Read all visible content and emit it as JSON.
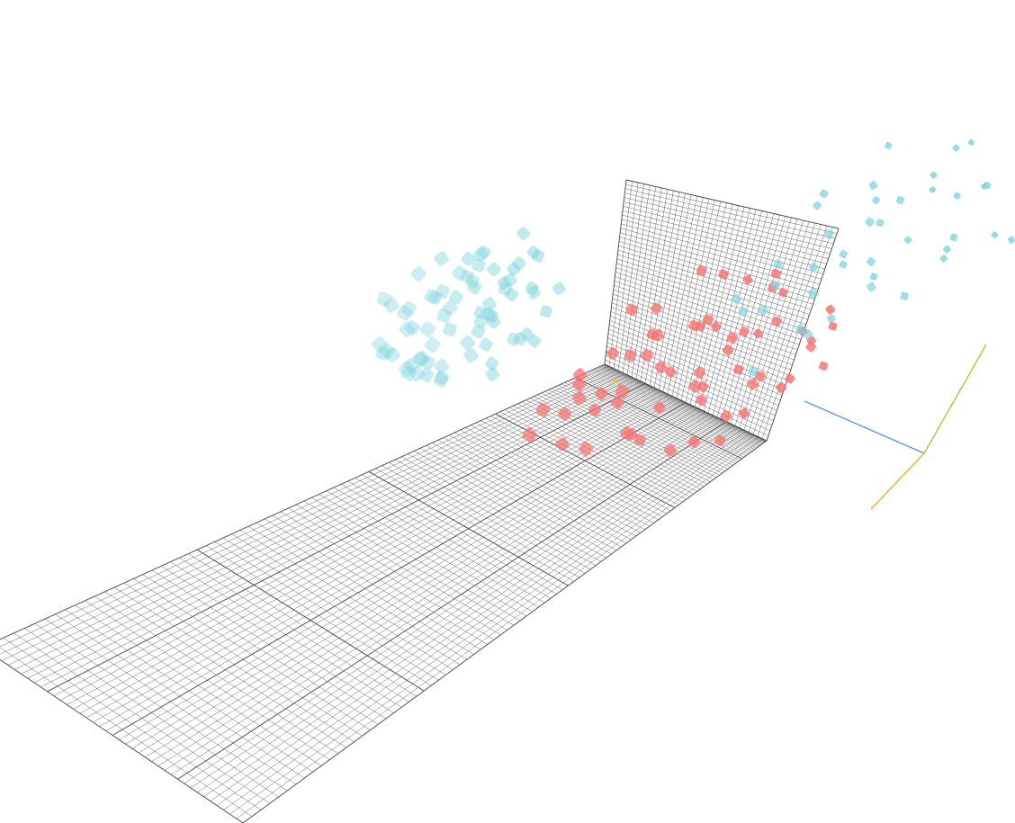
{
  "chart_data": {
    "type": "scatter",
    "dimensions": 3,
    "title": "",
    "xlabel": "",
    "ylabel": "",
    "zlabel": "",
    "grid": true,
    "xlim": [
      -5,
      5
    ],
    "ylim": [
      -5,
      5
    ],
    "zlim": [
      -5,
      5
    ],
    "series": [
      {
        "color": "#f87171",
        "points": [
          [
            2.1,
            -0.8,
            0.4
          ],
          [
            1.4,
            -1.2,
            0.9
          ],
          [
            2.8,
            0.3,
            1.2
          ],
          [
            0.6,
            -0.4,
            0.1
          ],
          [
            1.9,
            0.9,
            -0.3
          ],
          [
            3.2,
            -0.6,
            0.7
          ],
          [
            0.9,
            0.2,
            1.5
          ],
          [
            2.4,
            -1.6,
            -0.2
          ],
          [
            1.1,
            1.1,
            0.6
          ],
          [
            2.9,
            0.7,
            -0.5
          ],
          [
            0.3,
            -1.0,
            0.8
          ],
          [
            1.7,
            -0.1,
            1.8
          ],
          [
            3.5,
            0.1,
            0.2
          ],
          [
            2.2,
            1.4,
            0.9
          ],
          [
            0.8,
            -1.8,
            0.3
          ],
          [
            1.5,
            0.5,
            -0.8
          ],
          [
            2.6,
            -1.1,
            1.6
          ],
          [
            3.0,
            1.6,
            0.5
          ],
          [
            0.4,
            0.6,
            1.1
          ],
          [
            1.9,
            -2.0,
            0.6
          ],
          [
            2.3,
            0.0,
            2.2
          ],
          [
            1.2,
            -0.7,
            -0.6
          ],
          [
            3.3,
            -1.4,
            1.0
          ],
          [
            0.7,
            1.5,
            0.2
          ],
          [
            2.0,
            2.0,
            1.3
          ],
          [
            1.6,
            -1.5,
            1.9
          ],
          [
            2.7,
            -0.3,
            -0.9
          ],
          [
            0.2,
            -0.2,
            1.7
          ],
          [
            3.6,
            0.8,
            1.4
          ],
          [
            1.3,
            1.8,
            -0.2
          ],
          [
            2.5,
            -2.2,
            0.8
          ],
          [
            1.0,
            -0.9,
            2.4
          ],
          [
            3.1,
            0.4,
            -0.4
          ],
          [
            0.5,
            1.2,
            0.7
          ],
          [
            1.8,
            0.6,
            2.0
          ],
          [
            2.9,
            -1.9,
            0.1
          ],
          [
            1.4,
            2.3,
            1.0
          ],
          [
            0.1,
            -1.4,
            0.5
          ],
          [
            2.2,
            -0.5,
            1.1
          ],
          [
            3.4,
            -0.9,
            0.3
          ],
          [
            1.7,
            1.0,
            1.7
          ],
          [
            0.9,
            -2.1,
            1.2
          ],
          [
            2.6,
            1.2,
            2.1
          ],
          [
            1.1,
            0.0,
            -0.4
          ],
          [
            3.7,
            -0.2,
            0.9
          ],
          [
            2.0,
            -1.3,
            2.5
          ],
          [
            0.6,
            0.9,
            -0.1
          ],
          [
            2.8,
            2.2,
            0.4
          ],
          [
            1.5,
            -2.4,
            0.0
          ],
          [
            2.4,
            0.8,
            1.5
          ],
          [
            0.3,
            0.3,
            2.0
          ],
          [
            3.2,
            1.9,
            1.8
          ],
          [
            1.9,
            -0.3,
            0.2
          ],
          [
            1.2,
            1.6,
            1.4
          ],
          [
            2.7,
            -2.0,
            1.4
          ],
          [
            0.8,
            -0.6,
            2.6
          ],
          [
            3.0,
            -0.1,
            1.9
          ],
          [
            1.6,
            2.6,
            0.6
          ],
          [
            2.3,
            -0.9,
            -0.7
          ],
          [
            0.4,
            -1.7,
            1.6
          ]
        ]
      },
      {
        "color": "#7dd3dc",
        "points": [
          [
            -0.9,
            1.2,
            2.1
          ],
          [
            -1.3,
            2.0,
            1.6
          ],
          [
            -0.5,
            2.6,
            2.8
          ],
          [
            -1.8,
            1.4,
            3.0
          ],
          [
            -0.7,
            3.1,
            1.9
          ],
          [
            -1.5,
            2.4,
            3.5
          ],
          [
            -0.4,
            1.8,
            3.2
          ],
          [
            -2.0,
            3.0,
            2.4
          ],
          [
            -1.1,
            3.6,
            3.0
          ],
          [
            -0.6,
            2.2,
            1.2
          ],
          [
            -1.7,
            2.8,
            1.5
          ],
          [
            -0.8,
            3.4,
            3.8
          ],
          [
            -1.4,
            1.6,
            2.6
          ],
          [
            -0.3,
            2.9,
            2.5
          ],
          [
            -1.9,
            3.5,
            3.3
          ],
          [
            -1.0,
            2.5,
            4.0
          ],
          [
            -0.5,
            3.8,
            2.2
          ],
          [
            -1.6,
            2.1,
            3.9
          ],
          [
            -0.9,
            1.5,
            1.7
          ],
          [
            -1.2,
            3.2,
            2.0
          ],
          [
            -0.2,
            2.4,
            3.6
          ],
          [
            -2.1,
            2.6,
            2.9
          ],
          [
            -0.7,
            3.0,
            4.2
          ],
          [
            -1.4,
            3.9,
            2.7
          ],
          [
            -0.4,
            1.3,
            2.9
          ],
          [
            -1.8,
            1.9,
            2.2
          ],
          [
            -1.0,
            2.9,
            1.4
          ],
          [
            -0.6,
            3.5,
            3.1
          ],
          [
            -1.5,
            3.3,
            4.1
          ],
          [
            -0.8,
            2.0,
            3.4
          ],
          [
            -1.3,
            2.7,
            2.4
          ],
          [
            -0.3,
            3.3,
            1.8
          ],
          [
            -1.9,
            2.2,
            3.7
          ],
          [
            -1.1,
            1.7,
            4.3
          ],
          [
            -0.5,
            2.7,
            2.0
          ],
          [
            -1.6,
            3.7,
            2.3
          ],
          [
            -0.9,
            3.8,
            3.6
          ],
          [
            -1.2,
            1.9,
            1.1
          ],
          [
            -0.4,
            2.1,
            4.0
          ],
          [
            -2.0,
            3.3,
            1.9
          ],
          [
            -0.7,
            1.6,
            3.8
          ],
          [
            -1.4,
            2.3,
            3.2
          ],
          [
            -0.2,
            3.6,
            2.9
          ],
          [
            -1.7,
            3.1,
            1.6
          ],
          [
            -1.0,
            2.2,
            2.6
          ],
          [
            -0.6,
            2.8,
            3.9
          ],
          [
            -1.3,
            3.5,
            3.4
          ],
          [
            -0.8,
            1.4,
            1.5
          ],
          [
            -1.5,
            1.8,
            2.0
          ],
          [
            -0.3,
            2.6,
            3.3
          ],
          [
            -1.2,
            2.9,
            2.9
          ],
          [
            -0.9,
            2.4,
            2.3
          ],
          [
            -1.6,
            2.5,
            3.0
          ],
          [
            -0.5,
            3.2,
            3.5
          ],
          [
            -1.1,
            3.3,
            1.7
          ],
          [
            -1.8,
            3.7,
            3.6
          ],
          [
            -0.7,
            2.3,
            2.7
          ],
          [
            -1.4,
            1.3,
            3.5
          ],
          [
            -0.4,
            3.9,
            2.4
          ],
          [
            -1.9,
            2.7,
            4.0
          ],
          [
            -1.0,
            3.1,
            3.7
          ],
          [
            -0.6,
            1.9,
            1.9
          ],
          [
            -1.3,
            3.8,
            2.5
          ],
          [
            -0.8,
            2.6,
            4.4
          ],
          [
            -1.7,
            1.6,
            2.8
          ],
          [
            -0.2,
            2.0,
            2.1
          ],
          [
            -1.5,
            2.9,
            1.3
          ],
          [
            -0.9,
            3.4,
            2.2
          ],
          [
            -1.2,
            2.1,
            3.6
          ],
          [
            -0.5,
            1.7,
            3.0
          ],
          [
            1.8,
            -3.2,
            2.6
          ],
          [
            2.6,
            -4.1,
            3.0
          ],
          [
            0.9,
            -2.6,
            3.4
          ],
          [
            3.4,
            -3.6,
            2.2
          ],
          [
            1.2,
            -4.4,
            2.9
          ],
          [
            2.9,
            -2.9,
            3.7
          ],
          [
            0.5,
            -3.8,
            2.4
          ],
          [
            3.8,
            -4.6,
            3.2
          ],
          [
            1.6,
            -2.2,
            2.0
          ],
          [
            2.2,
            -4.8,
            2.7
          ],
          [
            4.1,
            -3.3,
            2.9
          ],
          [
            0.3,
            -4.0,
            3.6
          ],
          [
            3.1,
            -2.4,
            2.5
          ],
          [
            1.9,
            -3.7,
            1.9
          ],
          [
            4.4,
            -4.2,
            2.4
          ],
          [
            2.5,
            -1.9,
            3.3
          ],
          [
            1.1,
            -3.0,
            1.7
          ],
          [
            3.6,
            -2.0,
            3.9
          ],
          [
            0.7,
            -4.7,
            2.2
          ],
          [
            2.8,
            -3.9,
            1.6
          ],
          [
            4.0,
            -2.6,
            1.8
          ],
          [
            1.4,
            -4.9,
            3.5
          ],
          [
            3.3,
            -4.5,
            2.0
          ],
          [
            0.2,
            -2.9,
            2.7
          ],
          [
            2.3,
            -2.7,
            4.0
          ],
          [
            1.5,
            -1.6,
            2.4
          ],
          [
            3.9,
            -3.9,
            3.8
          ],
          [
            0.8,
            -2.0,
            1.4
          ],
          [
            2.0,
            -4.3,
            3.9
          ],
          [
            4.3,
            -1.8,
            2.6
          ],
          [
            1.3,
            -3.5,
            0.9
          ],
          [
            2.7,
            -1.5,
            1.2
          ],
          [
            0.4,
            -1.7,
            0.8
          ],
          [
            3.5,
            -1.2,
            1.5
          ],
          [
            1.7,
            -2.6,
            0.5
          ],
          [
            2.4,
            -0.9,
            0.4
          ],
          [
            0.6,
            -3.3,
            1.1
          ],
          [
            3.0,
            -0.6,
            2.3
          ],
          [
            1.0,
            -1.2,
            1.6
          ],
          [
            4.2,
            -0.8,
            3.0
          ]
        ]
      }
    ],
    "axes_gizmo": {
      "x_color": "#3b82f6",
      "y_color": "#84cc16",
      "z_color": "#f59e0b",
      "origin_marker_color": "#facc15"
    }
  }
}
